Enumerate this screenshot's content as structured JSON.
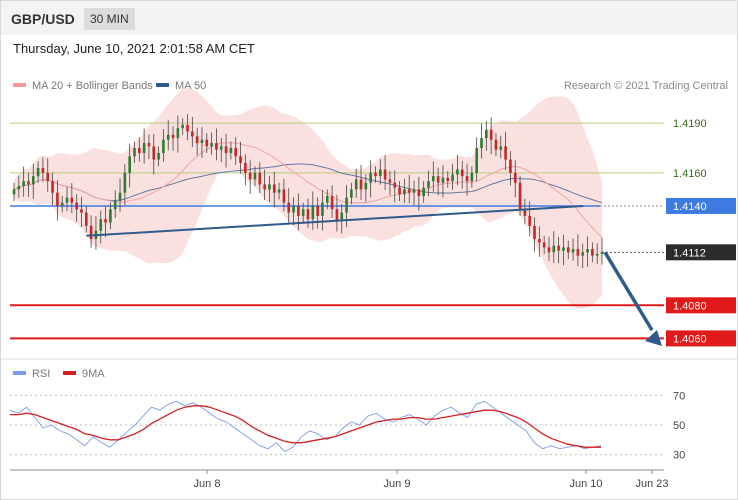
{
  "header": {
    "symbol": "GBP/USD",
    "timeframe": "30 MIN"
  },
  "datetime": "Thursday, June 10, 2021 2:01:58 AM CET",
  "legend": [
    {
      "label": "MA 20 + Bollinger Bands",
      "color": "#f29a9a"
    },
    {
      "label": "MA 50",
      "color": "#2f5b8c"
    }
  ],
  "credit": "Research © 2021 Trading Central",
  "colors": {
    "resistance": "#b5cc7a",
    "pivot": "#3d7be0",
    "support": "#e01a1a",
    "current": "#2b2b2b",
    "arrow": "#2f5b8c",
    "candle_up": "#2e7d32",
    "candle_down": "#c62828",
    "bollinger": "#fadada",
    "ma20": "#f2a3a3",
    "ma50": "#3a5f94",
    "rsi": "#7b9ce6",
    "rsi_ma": "#d42020"
  },
  "chart_data": [
    {
      "type": "candlestick",
      "title": "GBP/USD 30 MIN",
      "xlabel": "",
      "ylabel": "",
      "ylim": [
        1.4053,
        1.4204
      ],
      "levels": [
        {
          "value": 1.419,
          "label": "1.4190",
          "kind": "resistance"
        },
        {
          "value": 1.416,
          "label": "1.4160",
          "kind": "resistance"
        },
        {
          "value": 1.414,
          "label": "1.4140",
          "kind": "pivot"
        },
        {
          "value": 1.4112,
          "label": "1.4112",
          "kind": "current"
        },
        {
          "value": 1.408,
          "label": "1.4080",
          "kind": "support"
        },
        {
          "value": 1.406,
          "label": "1.4060",
          "kind": "support"
        }
      ],
      "x_ticks": [
        "Jun 8",
        "Jun 9",
        "Jun 10",
        "Jun 23"
      ],
      "close": [
        1.415,
        1.4152,
        1.4155,
        1.4153,
        1.4158,
        1.4163,
        1.416,
        1.4155,
        1.4148,
        1.414,
        1.4142,
        1.4145,
        1.4142,
        1.4138,
        1.4136,
        1.4128,
        1.412,
        1.4125,
        1.4132,
        1.413,
        1.4138,
        1.4143,
        1.4148,
        1.416,
        1.417,
        1.4175,
        1.4172,
        1.4178,
        1.4176,
        1.4168,
        1.4172,
        1.418,
        1.4183,
        1.4181,
        1.4187,
        1.4189,
        1.4185,
        1.4182,
        1.4178,
        1.418,
        1.4176,
        1.4178,
        1.4174,
        1.4176,
        1.4172,
        1.4175,
        1.417,
        1.4166,
        1.416,
        1.4156,
        1.416,
        1.4153,
        1.415,
        1.4153,
        1.4148,
        1.415,
        1.4142,
        1.4136,
        1.414,
        1.4134,
        1.4138,
        1.4132,
        1.414,
        1.4134,
        1.4142,
        1.4146,
        1.4138,
        1.4131,
        1.4136,
        1.4145,
        1.415,
        1.4156,
        1.415,
        1.4154,
        1.416,
        1.4158,
        1.4162,
        1.4156,
        1.4154,
        1.4151,
        1.4147,
        1.415,
        1.4148,
        1.415,
        1.4146,
        1.4151,
        1.4155,
        1.4158,
        1.4154,
        1.4157,
        1.4155,
        1.4159,
        1.4162,
        1.4158,
        1.4155,
        1.416,
        1.4175,
        1.4181,
        1.4186,
        1.418,
        1.4174,
        1.4176,
        1.4168,
        1.416,
        1.4154,
        1.4138,
        1.4134,
        1.4128,
        1.412,
        1.4118,
        1.4115,
        1.4112,
        1.4116,
        1.4113,
        1.4115,
        1.4112,
        1.4114,
        1.411,
        1.4112,
        1.4114,
        1.411,
        1.4111,
        1.4112
      ],
      "series": [
        {
          "name": "MA 20 + Bollinger Bands"
        },
        {
          "name": "MA 50"
        }
      ]
    },
    {
      "type": "line",
      "title": "",
      "ylim": [
        25,
        75
      ],
      "y_ticks": [
        70,
        50,
        30
      ],
      "series": [
        {
          "name": "RSI",
          "values": [
            60,
            58,
            62,
            55,
            48,
            50,
            46,
            44,
            40,
            36,
            42,
            38,
            35,
            40,
            45,
            50,
            56,
            62,
            60,
            64,
            66,
            63,
            65,
            62,
            58,
            54,
            52,
            48,
            44,
            40,
            36,
            34,
            38,
            32,
            35,
            42,
            46,
            44,
            40,
            42,
            48,
            52,
            50,
            56,
            58,
            54,
            52,
            55,
            57,
            54,
            50,
            56,
            60,
            62,
            58,
            55,
            64,
            66,
            62,
            58,
            54,
            50,
            46,
            38,
            34,
            36,
            34,
            35,
            36,
            34,
            35,
            36
          ]
        },
        {
          "name": "9MA",
          "values": [
            57,
            57,
            58,
            57,
            55,
            53,
            51,
            49,
            47,
            44,
            43,
            41,
            40,
            40,
            42,
            44,
            47,
            51,
            54,
            57,
            60,
            62,
            63,
            63,
            62,
            60,
            58,
            56,
            53,
            49,
            46,
            43,
            41,
            39,
            38,
            38,
            39,
            40,
            41,
            42,
            44,
            46,
            48,
            50,
            52,
            53,
            54,
            54,
            55,
            55,
            54,
            54,
            55,
            56,
            57,
            58,
            59,
            60,
            60,
            59,
            57,
            55,
            52,
            48,
            44,
            41,
            39,
            37,
            36,
            35,
            35,
            35
          ]
        }
      ]
    }
  ]
}
